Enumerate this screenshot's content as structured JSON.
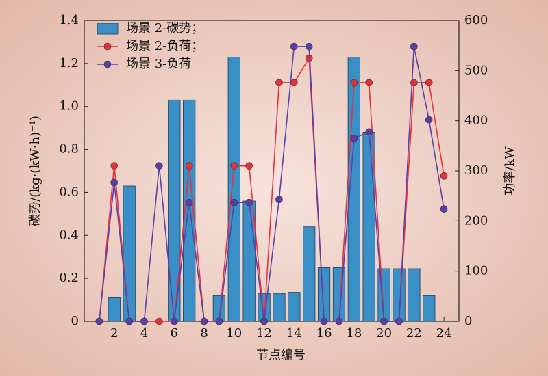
{
  "chart_data": {
    "type": "combo",
    "xlabel": "节点编号",
    "ylabel": "碳势/(kg·(kW·h)⁻¹)",
    "y2label": "功率/kW",
    "x": [
      1,
      2,
      3,
      4,
      5,
      6,
      7,
      8,
      9,
      10,
      11,
      12,
      13,
      14,
      15,
      16,
      17,
      18,
      19,
      20,
      21,
      22,
      23,
      24
    ],
    "xlim": [
      0,
      25
    ],
    "xticks": [
      2,
      4,
      6,
      8,
      10,
      12,
      14,
      16,
      18,
      20,
      22,
      24
    ],
    "ylim": [
      0,
      1.4
    ],
    "yticks": [
      0,
      0.2,
      0.4,
      0.6,
      0.8,
      {
        "value": 1,
        "label": "1.0"
      },
      1.2,
      1.4
    ],
    "y2lim": [
      0,
      600
    ],
    "y2ticks": [
      0,
      100,
      200,
      300,
      400,
      500,
      600
    ],
    "legend": "upper-left",
    "series": [
      {
        "name": "场景 2-碳势；",
        "type": "bar",
        "color": "#3a8fc6",
        "values": [
          0,
          0.11,
          0.63,
          0,
          0,
          1.03,
          1.03,
          0,
          0.12,
          1.23,
          0.56,
          0.13,
          0.13,
          0.135,
          0.44,
          0.25,
          0.25,
          1.23,
          0.88,
          0.245,
          0.245,
          0.245,
          0.12,
          0
        ]
      },
      {
        "name": "场景 2-负荷；",
        "type": "line",
        "axis": "y2",
        "color": "#e8303a",
        "values": [
          0,
          310,
          0,
          0,
          0,
          0,
          310,
          0,
          0,
          310,
          310,
          0,
          476,
          476,
          525,
          0,
          0,
          476,
          476,
          0,
          0,
          476,
          476,
          290
        ]
      },
      {
        "name": "场景 3-负荷",
        "type": "line",
        "axis": "y2",
        "color": "#5b3fa8",
        "values": [
          0,
          277,
          0,
          0,
          310,
          0,
          237,
          0,
          0,
          237,
          237,
          0,
          243,
          548,
          548,
          0,
          0,
          365,
          378,
          0,
          0,
          548,
          402,
          224
        ]
      }
    ]
  }
}
